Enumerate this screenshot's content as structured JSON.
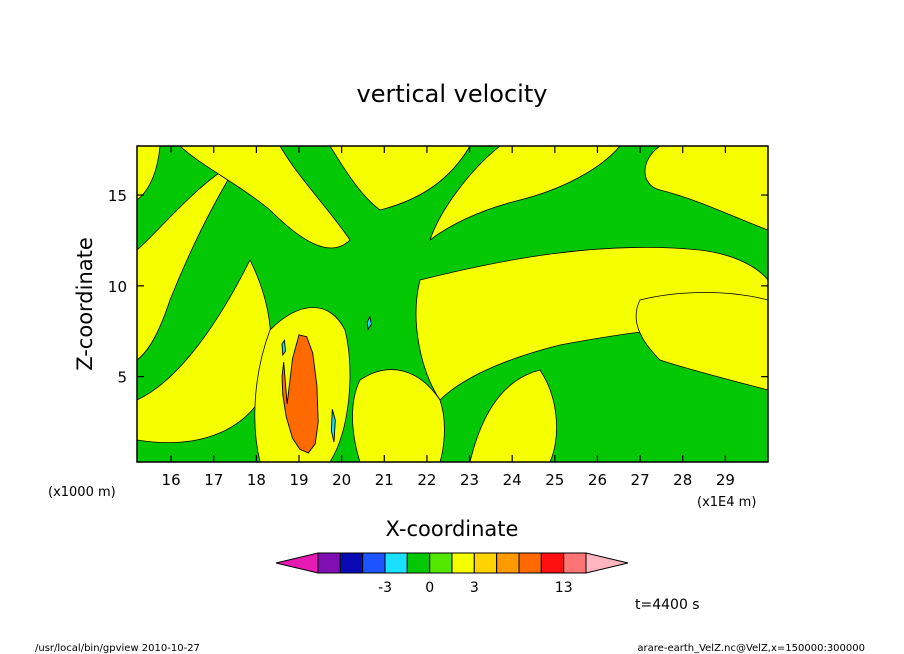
{
  "chart_data": {
    "type": "heatmap",
    "title": "vertical velocity",
    "xlabel": "X-coordinate",
    "ylabel": "Z-coordinate",
    "x_units": "(x1E4 m)",
    "y_units": "(x1000 m)",
    "xlim": [
      15.2,
      30.0
    ],
    "ylim": [
      0.3,
      17.7
    ],
    "x_ticks": [
      16,
      17,
      18,
      19,
      20,
      21,
      22,
      23,
      24,
      25,
      26,
      27,
      28,
      29
    ],
    "x_tick_labels": [
      "16",
      "17",
      "18",
      "19",
      "20",
      "21",
      "22",
      "23",
      "24",
      "25",
      "26",
      "27",
      "28",
      "29"
    ],
    "y_ticks": [
      5,
      10,
      15
    ],
    "y_tick_labels": [
      "5",
      "10",
      "15"
    ],
    "colorbar": {
      "colors": [
        "#e619b3",
        "#7f0fb3",
        "#0a0ab4",
        "#1c55ff",
        "#19e0ff",
        "#05c805",
        "#54e800",
        "#f5ff00",
        "#ffd200",
        "#ff9b00",
        "#ff6a00",
        "#ff1010",
        "#ff7575",
        "#ffb6c1"
      ],
      "labels": [
        "-3",
        "0",
        "3",
        "13"
      ]
    },
    "time_label": "t=4400 s",
    "regions": [
      {
        "color": "#ff6a00",
        "x": [
          18.72,
          18.85,
          19.0,
          19.18,
          19.32,
          19.42,
          19.45,
          19.38,
          19.22,
          19.02,
          18.85,
          18.7,
          18.62,
          18.6,
          18.64
        ],
        "y": [
          3.5,
          6.0,
          7.3,
          7.2,
          6.3,
          4.5,
          2.5,
          1.3,
          0.8,
          1.0,
          1.6,
          2.8,
          4.0,
          5.0,
          5.8
        ]
      },
      {
        "color": "#19e0ff",
        "x": [
          19.78,
          19.85,
          19.82,
          19.76
        ],
        "y": [
          3.2,
          2.6,
          1.4,
          2.0
        ]
      },
      {
        "color": "#19e0ff",
        "x": [
          18.62,
          18.68,
          18.66,
          18.6
        ],
        "y": [
          6.2,
          6.4,
          7.0,
          6.8
        ]
      },
      {
        "color": "#19e0ff",
        "x": [
          20.62,
          20.7,
          20.66,
          20.6
        ],
        "y": [
          7.6,
          7.9,
          8.3,
          8.0
        ]
      }
    ]
  },
  "footer": {
    "left": "/usr/local/bin/gpview   2010-10-27",
    "right": "arare-earth_VelZ.nc@VelZ,x=150000:300000"
  }
}
